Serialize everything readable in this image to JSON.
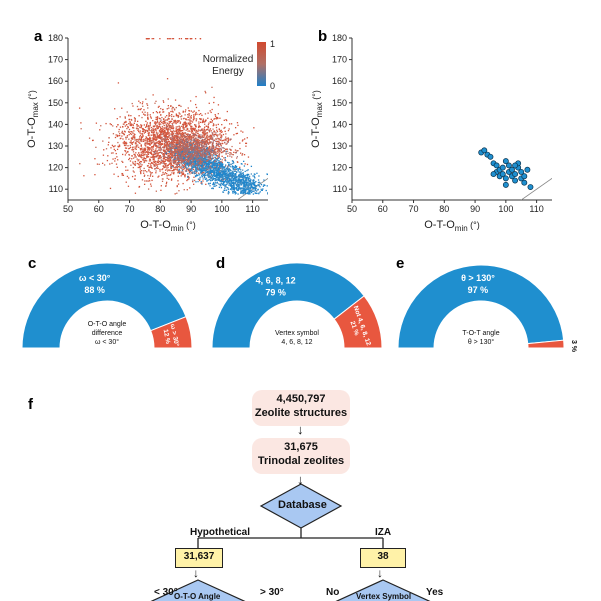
{
  "panels": {
    "a": "a",
    "b": "b",
    "c": "c",
    "d": "d",
    "e": "e",
    "f": "f"
  },
  "colors": {
    "blue": "#1f8fcf",
    "red": "#e8573f",
    "pink_box": "#fbe7e2",
    "yellow_box": "#fff2a8",
    "diamond": "#a9c8f2"
  },
  "chart_data": [
    {
      "type": "scatter",
      "panel": "a",
      "xlabel_main": "O-T-O",
      "xlabel_sub": "min",
      "ylabel_main": "O-T-O",
      "ylabel_sub": "max",
      "unit": "(°)",
      "xlim": [
        50,
        115
      ],
      "ylim": [
        105,
        180
      ],
      "xticks": [
        "50",
        "60",
        "70",
        "80",
        "90",
        "100",
        "110"
      ],
      "yticks": [
        "110",
        "120",
        "130",
        "140",
        "150",
        "160",
        "170",
        "180"
      ],
      "colorbar_title": "Normalized Energy",
      "colorbar_labels": [
        "1",
        "0"
      ],
      "diagonal": true,
      "description_note": "Dense cloud of points, red (high energy) around x 75-95 y 120-145, blue (low energy) along diagonal x 90-110 y 110-125"
    },
    {
      "type": "scatter",
      "panel": "b",
      "xlabel_main": "O-T-O",
      "xlabel_sub": "min",
      "ylabel_main": "O-T-O",
      "ylabel_sub": "max",
      "unit": "(°)",
      "xlim": [
        50,
        115
      ],
      "ylim": [
        105,
        180
      ],
      "xticks": [
        "50",
        "60",
        "70",
        "80",
        "90",
        "100",
        "110"
      ],
      "yticks": [
        "110",
        "120",
        "130",
        "140",
        "150",
        "160",
        "170",
        "180"
      ],
      "diagonal": true,
      "points": [
        [
          92,
          127
        ],
        [
          93,
          128
        ],
        [
          94,
          126
        ],
        [
          95,
          125
        ],
        [
          96,
          122
        ],
        [
          97,
          118
        ],
        [
          97,
          121
        ],
        [
          98,
          116
        ],
        [
          98,
          119
        ],
        [
          99,
          117
        ],
        [
          99,
          120
        ],
        [
          100,
          115
        ],
        [
          100,
          123
        ],
        [
          101,
          118
        ],
        [
          101,
          121
        ],
        [
          102,
          116
        ],
        [
          102,
          119
        ],
        [
          103,
          114
        ],
        [
          103,
          117
        ],
        [
          104,
          120
        ],
        [
          104,
          122
        ],
        [
          105,
          115
        ],
        [
          105,
          118
        ],
        [
          106,
          116
        ],
        [
          106,
          113
        ],
        [
          107,
          119
        ],
        [
          108,
          111
        ],
        [
          96,
          117
        ],
        [
          100,
          112
        ],
        [
          103,
          121
        ]
      ]
    },
    {
      "type": "pie",
      "panel": "c",
      "slices": [
        {
          "label": "ω < 30°",
          "value": 88,
          "pct": "88 %"
        },
        {
          "label": "ω > 30°",
          "value": 12,
          "pct": "12 %"
        }
      ],
      "center_lines": [
        "O-T-O angle",
        "difference",
        "ω < 30°"
      ]
    },
    {
      "type": "pie",
      "panel": "d",
      "slices": [
        {
          "label": "4, 6, 8, 12",
          "value": 79,
          "pct": "79 %"
        },
        {
          "label": "Not 4, 6, 8, 12",
          "value": 21,
          "pct": "21 %"
        }
      ],
      "center_lines": [
        "Vertex symbol",
        "4, 6, 8, 12"
      ]
    },
    {
      "type": "pie",
      "panel": "e",
      "slices": [
        {
          "label": "θ > 130°",
          "value": 97,
          "pct": "97 %"
        },
        {
          "label": "",
          "value": 3,
          "pct": "3 %"
        }
      ],
      "center_lines": [
        "T-O-T angle",
        "θ > 130°"
      ]
    }
  ],
  "flowchart": {
    "box1_count": "4,450,797",
    "box1_label": "Zeolite structures",
    "box2_count": "31,675",
    "box2_label": "Trinodal zeolites",
    "database": "Database",
    "branch_left": "Hypothetical",
    "branch_right": "IZA",
    "left_count": "31,637",
    "right_count": "38",
    "left_diamond": "O-T-O Angle",
    "right_diamond": "Vertex Symbol",
    "left_lt": "< 30°",
    "left_gt": "> 30°",
    "right_no": "No",
    "right_yes": "Yes",
    "arrow": "↓"
  }
}
